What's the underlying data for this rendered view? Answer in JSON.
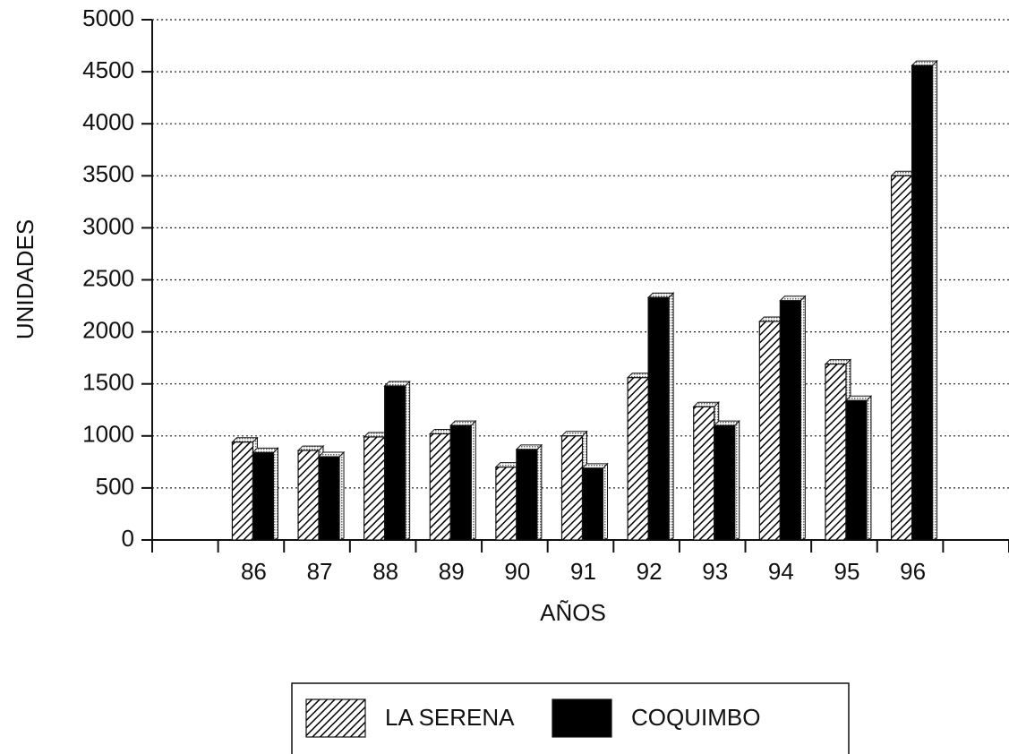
{
  "chart_data": {
    "type": "bar",
    "x_label": "AÑOS",
    "y_label": "UNIDADES",
    "categories": [
      null,
      "86",
      "87",
      "88",
      "89",
      "90",
      "91",
      "92",
      "93",
      "94",
      "95",
      "96",
      null
    ],
    "series": [
      {
        "name": "LA SERENA",
        "color": "#000000",
        "pattern": "hatch",
        "values": [
          null,
          940,
          860,
          990,
          1020,
          700,
          1000,
          1560,
          1280,
          2100,
          1690,
          3500,
          null
        ]
      },
      {
        "name": "COQUIMBO",
        "color": "#000000",
        "pattern": "solid",
        "values": [
          null,
          840,
          800,
          1480,
          1100,
          870,
          690,
          2330,
          1100,
          2300,
          1340,
          4560,
          null
        ]
      }
    ],
    "ylim": [
      0,
      5000
    ],
    "yticks": [
      0,
      500,
      1000,
      1500,
      2000,
      2500,
      3000,
      3500,
      4000,
      4500,
      5000
    ],
    "grid": true,
    "legend": "bottom"
  }
}
